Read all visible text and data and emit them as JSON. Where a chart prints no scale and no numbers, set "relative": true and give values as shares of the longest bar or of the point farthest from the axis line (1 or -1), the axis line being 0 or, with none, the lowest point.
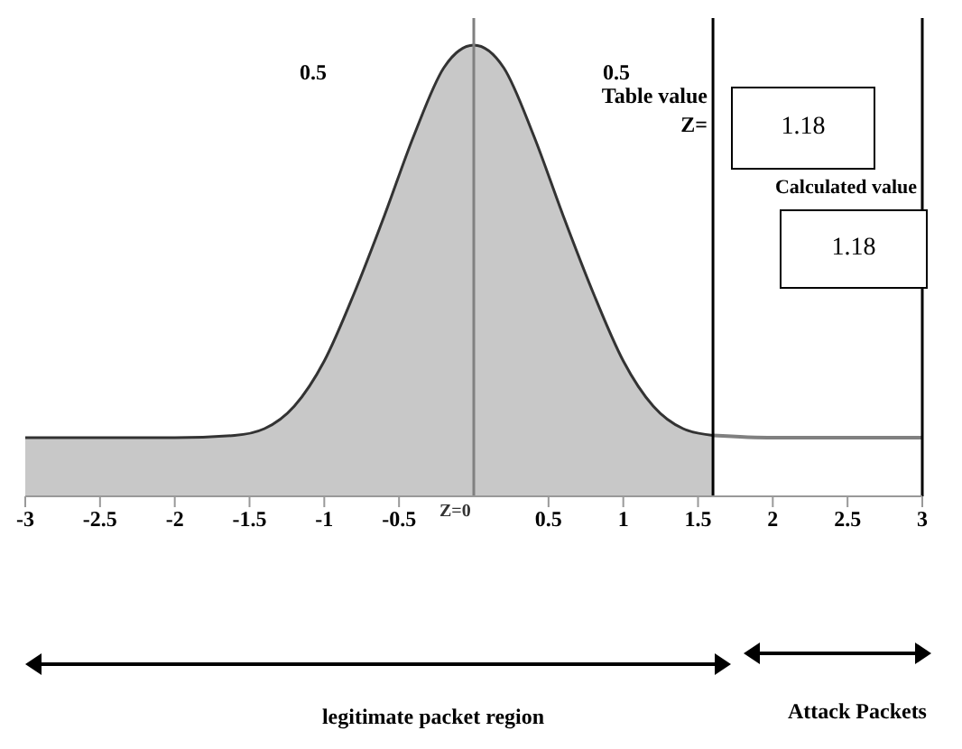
{
  "chart_data": {
    "type": "area",
    "relative": true,
    "series": [
      {
        "color": "#c8c8c8",
        "x": [
          -3,
          -2,
          -1.6,
          -1.4,
          -1.2,
          -1,
          -0.8,
          -0.6,
          -0.4,
          -0.2,
          0,
          0.2,
          0.4,
          0.6,
          0.8,
          1,
          1.2,
          1.4,
          1.6
        ],
        "values": [
          0.13,
          0.13,
          0.135,
          0.15,
          0.2,
          0.3,
          0.45,
          0.62,
          0.8,
          0.95,
          1,
          0.95,
          0.8,
          0.62,
          0.45,
          0.3,
          0.2,
          0.15,
          0.135
        ]
      },
      {
        "type": "line",
        "color": "#808080",
        "x": [
          1.6,
          2,
          3
        ],
        "values": [
          0.135,
          0.13,
          0.13
        ]
      }
    ],
    "xlim": [
      -3,
      3
    ],
    "xticks": [
      -3,
      -2.5,
      -2,
      -1.5,
      -1,
      -0.5,
      0.5,
      1,
      1.5,
      2,
      2.5,
      3
    ],
    "ref_lines": [
      {
        "axis": "x",
        "value": 0,
        "label": "Z=0",
        "color": "#808080"
      },
      {
        "axis": "x",
        "value": 1.6,
        "color": "#000000"
      },
      {
        "axis": "x",
        "value": 3,
        "color": "#000000"
      }
    ],
    "annotations": [
      "0.5",
      "0.5",
      "Table value",
      "Z=",
      "1.18",
      "Calculated value",
      "1.18",
      "legitimate packet region",
      "Attack Packets"
    ],
    "marker": "none"
  }
}
